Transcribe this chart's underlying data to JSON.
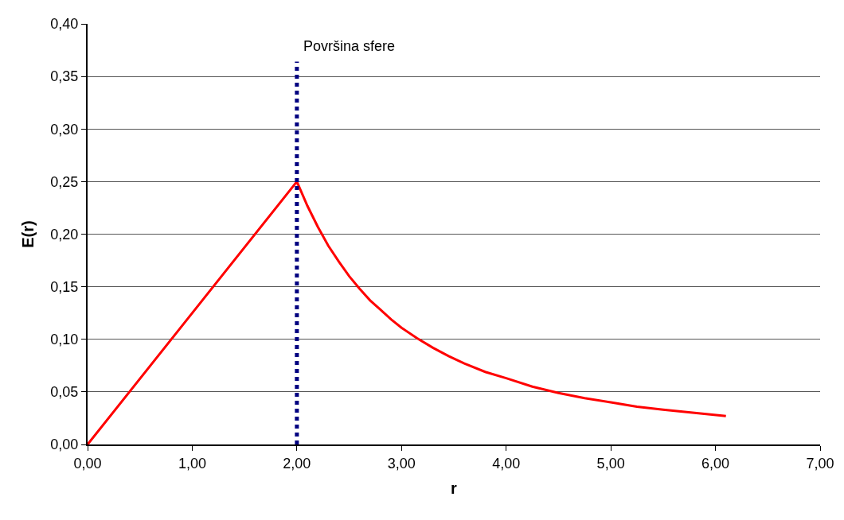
{
  "chart_data": {
    "type": "line",
    "xlabel": "r",
    "ylabel": "E(r)",
    "series": [
      {
        "color": "#ff0000",
        "x": [
          0,
          2,
          2.1,
          2.2,
          2.3,
          2.4,
          2.5,
          2.6,
          2.7,
          2.8,
          2.9,
          3.0,
          3.15,
          3.3,
          3.45,
          3.6,
          3.8,
          4.0,
          4.25,
          4.5,
          4.75,
          5.0,
          5.25,
          5.5,
          5.8,
          6.1
        ],
        "values": [
          0,
          0.25,
          0.227,
          0.207,
          0.189,
          0.174,
          0.16,
          0.148,
          0.137,
          0.128,
          0.119,
          0.111,
          0.101,
          0.092,
          0.084,
          0.077,
          0.069,
          0.063,
          0.055,
          0.049,
          0.044,
          0.04,
          0.036,
          0.033,
          0.03,
          0.027
        ]
      }
    ],
    "xlim": [
      0,
      7
    ],
    "xticks": [
      {
        "value": 0,
        "label": "0,00"
      },
      {
        "value": 1,
        "label": "1,00"
      },
      {
        "value": 2,
        "label": "2,00"
      },
      {
        "value": 3,
        "label": "3,00"
      },
      {
        "value": 4,
        "label": "4,00"
      },
      {
        "value": 5,
        "label": "5,00"
      },
      {
        "value": 6,
        "label": "6,00"
      },
      {
        "value": 7,
        "label": "7,00"
      }
    ],
    "ylim": [
      0,
      0.4
    ],
    "yticks": [
      {
        "value": 0,
        "label": "0,00"
      },
      {
        "value": 0.05,
        "label": "0,05"
      },
      {
        "value": 0.1,
        "label": "0,10"
      },
      {
        "value": 0.15,
        "label": "0,15"
      },
      {
        "value": 0.2,
        "label": "0,20"
      },
      {
        "value": 0.25,
        "label": "0,25"
      },
      {
        "value": 0.3,
        "label": "0,30"
      },
      {
        "value": 0.35,
        "label": "0,35"
      },
      {
        "value": 0.4,
        "label": "0,40"
      }
    ],
    "ref_lines": [
      {
        "axis": "x",
        "value": 2,
        "label": "Površina sfere",
        "color": "#000080",
        "line_style": "dotted"
      }
    ],
    "grid": "y",
    "marker": "none",
    "line_style": "solid"
  }
}
